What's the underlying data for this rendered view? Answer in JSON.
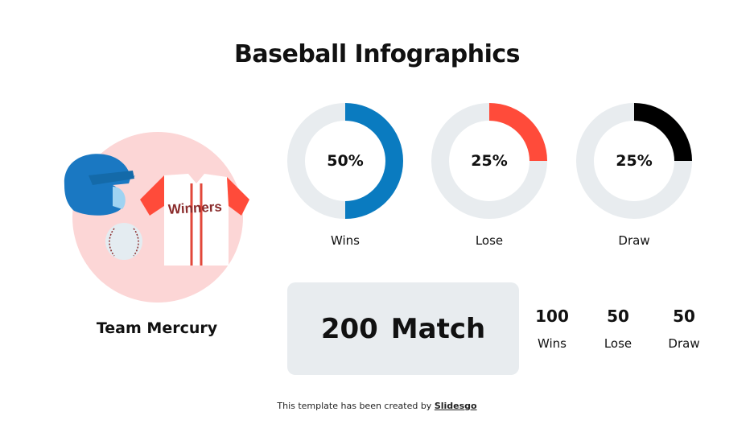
{
  "title": "Baseball Infographics",
  "illustration": {
    "jersey_text": "Winners"
  },
  "team_name": "Team Mercury",
  "chart_data": {
    "type": "pie",
    "variant": "donut",
    "charts": [
      {
        "label": "Wins",
        "value": 50,
        "display": "50%",
        "color": "#0a7bc0",
        "track_color": "#e8ecef"
      },
      {
        "label": "Lose",
        "value": 25,
        "display": "25%",
        "color": "#ff4b3a",
        "track_color": "#e8ecef"
      },
      {
        "label": "Draw",
        "value": 25,
        "display": "25%",
        "color": "#000000",
        "track_color": "#e8ecef"
      }
    ]
  },
  "summary": {
    "count": "200",
    "unit": "Match"
  },
  "stats": [
    {
      "value": "100",
      "label": "Wins"
    },
    {
      "value": "50",
      "label": "Lose"
    },
    {
      "value": "50",
      "label": "Draw"
    }
  ],
  "footer": {
    "text": "This template has been created by",
    "link": "Slidesgo"
  }
}
